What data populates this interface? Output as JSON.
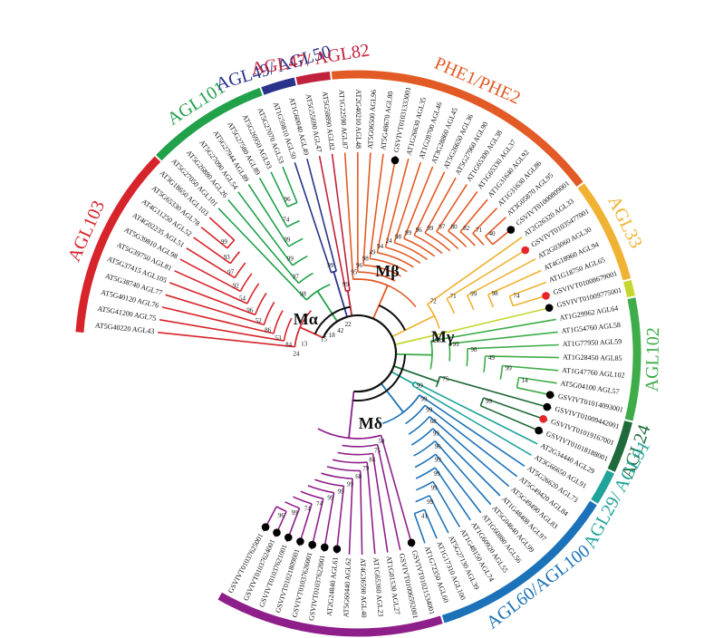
{
  "clades": [
    {
      "id": "AGL103",
      "label": "AGL103",
      "color": "#d7232a"
    },
    {
      "id": "AGL101",
      "label": "AGL101",
      "color": "#20a14a"
    },
    {
      "id": "AGL49",
      "label": "AGL49/ AGL50",
      "color": "#283389"
    },
    {
      "id": "AGL47",
      "label": "AGL47/ AGL82",
      "color": "#c0213b"
    },
    {
      "id": "PHE",
      "label": "PHE1/PHE2",
      "color": "#e25a25"
    },
    {
      "id": "AGL33",
      "label": "AGL33",
      "color": "#f0b232"
    },
    {
      "id": "Yel",
      "label": "",
      "color": "#c6d630"
    },
    {
      "id": "AGL102",
      "label": "AGL102",
      "color": "#3eac49"
    },
    {
      "id": "AGL24",
      "label": "AGL24",
      "color": "#1f6a3a"
    },
    {
      "id": "AGL29",
      "label": "AGL29/ AGL91",
      "color": "#1fa39b"
    },
    {
      "id": "AGL60",
      "label": "AGL60/AGL100",
      "color": "#1c72b8"
    },
    {
      "id": "AGL61",
      "label": "AGL61",
      "color": "#8e1f8a"
    }
  ],
  "subclades": [
    "Mα",
    "Mβ",
    "Mγ",
    "Mδ"
  ],
  "leaves": [
    {
      "name": "AT5G40220 AGL43",
      "clade": "AGL103",
      "marker": "",
      "boot": "84"
    },
    {
      "name": "AT5G41200 AGL75",
      "clade": "AGL103",
      "marker": "",
      "boot": "53"
    },
    {
      "name": "AT5G40120 AGL76",
      "clade": "AGL103",
      "marker": "",
      "boot": "86"
    },
    {
      "name": "AT5G38740 AGL77",
      "clade": "AGL103",
      "marker": "",
      "boot": "52"
    },
    {
      "name": "AT5G37415 AGL105",
      "clade": "AGL103",
      "marker": "",
      "boot": "96"
    },
    {
      "name": "AT5G39750 AGL81",
      "clade": "AGL103",
      "marker": "",
      "boot": "54"
    },
    {
      "name": "AT5G39810 AGL98",
      "clade": "AGL103",
      "marker": "",
      "boot": "92"
    },
    {
      "name": "AT4G02235 AGL51",
      "clade": "AGL103",
      "marker": "",
      "boot": "97"
    },
    {
      "name": "AT4G11250 AGL52",
      "clade": "AGL103",
      "marker": "",
      "boot": "93"
    },
    {
      "name": "AT5G65330 AGL78",
      "clade": "AGL103",
      "marker": "",
      "boot": "99"
    },
    {
      "name": "AT3G18650 AGL103",
      "clade": "AGL103",
      "marker": "",
      "boot": "98"
    },
    {
      "name": "AT5G27050 AGL101",
      "clade": "AGL101",
      "marker": "",
      "boot": "98"
    },
    {
      "name": "AT5G26880 AGL26",
      "clade": "AGL101",
      "marker": "",
      "boot": "97"
    },
    {
      "name": "AT5G27090 AGL54",
      "clade": "AGL101",
      "marker": "",
      "boot": "99"
    },
    {
      "name": "AT5G27944 AGL89",
      "clade": "AGL101",
      "marker": "",
      "boot": "99"
    },
    {
      "name": "AT5G27580 AGL89",
      "clade": "AGL101",
      "marker": "",
      "boot": "74"
    },
    {
      "name": "AT5G26950 AGL93",
      "clade": "AGL101",
      "marker": "",
      "boot": "96"
    },
    {
      "name": "AT5G27070 AGL53",
      "clade": "AGL101",
      "marker": "",
      "boot": "99"
    },
    {
      "name": "AT1G59810 AGL50",
      "clade": "AGL49",
      "marker": "",
      "boot": "99"
    },
    {
      "name": "AT1G60040 AGL49",
      "clade": "AGL49",
      "marker": "",
      "boot": "99"
    },
    {
      "name": "AT5G55690 AGL47",
      "clade": "AGL47",
      "marker": "",
      "boot": "99"
    },
    {
      "name": "AT5G58890 AGL82",
      "clade": "AGL47",
      "marker": "",
      "boot": "78"
    },
    {
      "name": "AT1G22590 AGL87",
      "clade": "PHE",
      "marker": "",
      "boot": "95"
    },
    {
      "name": "AT2G40210 AGL48",
      "clade": "PHE",
      "marker": "",
      "boot": "96"
    },
    {
      "name": "AT5G06500 AGL96",
      "clade": "PHE",
      "marker": "",
      "boot": "98"
    },
    {
      "name": "AT5G48670 AGL80",
      "clade": "PHE",
      "marker": "",
      "boot": "49"
    },
    {
      "name": "GSVIVT01031333001",
      "clade": "PHE",
      "marker": "black",
      "boot": "94"
    },
    {
      "name": "AT1G26630 AGL35",
      "clade": "PHE",
      "marker": "",
      "boot": "24"
    },
    {
      "name": "AT1G28700 AGL46",
      "clade": "PHE",
      "marker": "",
      "boot": "98"
    },
    {
      "name": "AT3G28860 AGL45",
      "clade": "PHE",
      "marker": "",
      "boot": "99"
    },
    {
      "name": "AT5G26650 AGL36",
      "clade": "PHE",
      "marker": "",
      "boot": "96"
    },
    {
      "name": "AT5G27960 AGL90",
      "clade": "PHE",
      "marker": "",
      "boot": "99"
    },
    {
      "name": "AT1G65300 AGL38",
      "clade": "PHE",
      "marker": "",
      "boot": "97"
    },
    {
      "name": "AT1G65330 AGL37",
      "clade": "PHE",
      "marker": "",
      "boot": "80"
    },
    {
      "name": "AT1G31640 AGL92",
      "clade": "PHE",
      "marker": "",
      "boot": "82"
    },
    {
      "name": "AT1G31630 AGL86",
      "clade": "PHE",
      "marker": "",
      "boot": "71"
    },
    {
      "name": "AT3G05870 AGL95",
      "clade": "PHE",
      "marker": "",
      "boot": "40"
    },
    {
      "name": "GSVIVT01000809001",
      "clade": "PHE",
      "marker": "black",
      "boot": ""
    },
    {
      "name": "AT2G26320 AGL33",
      "clade": "AGL33",
      "marker": "",
      "boot": "72"
    },
    {
      "name": "GSVIVT01035477001",
      "clade": "AGL33",
      "marker": "red",
      "boot": "71"
    },
    {
      "name": "AT2G03060 AGL30",
      "clade": "AGL33",
      "marker": "",
      "boot": "99"
    },
    {
      "name": "AT4G18960 AGL94",
      "clade": "AGL33",
      "marker": "",
      "boot": "98"
    },
    {
      "name": "AT1G18750 AGL65",
      "clade": "AGL33",
      "marker": "",
      "boot": "74"
    },
    {
      "name": "GSVIVT01008679001",
      "clade": "AGL33",
      "marker": "red",
      "boot": "66"
    },
    {
      "name": "GSVIVT01009775001",
      "clade": "Yel",
      "marker": "black",
      "boot": ""
    },
    {
      "name": "AT1G29962 AGL64",
      "clade": "AGL102",
      "marker": "",
      "boot": "86"
    },
    {
      "name": "AT1G54760 AGL58",
      "clade": "AGL102",
      "marker": "",
      "boot": "99"
    },
    {
      "name": "AT1G77950 AGL59",
      "clade": "AGL102",
      "marker": "",
      "boot": "98"
    },
    {
      "name": "AT1G28450 AGL85",
      "clade": "AGL102",
      "marker": "",
      "boot": "49"
    },
    {
      "name": "AT1G47760 AGL102",
      "clade": "AGL102",
      "marker": "",
      "boot": "99"
    },
    {
      "name": "AT5G04100 AGL57",
      "clade": "AGL102",
      "marker": "",
      "boot": "14"
    },
    {
      "name": "GSVIVT01014093001",
      "clade": "AGL102",
      "marker": "black",
      "boot": ""
    },
    {
      "name": "GSVIVT01009442001",
      "clade": "AGL24",
      "marker": "black",
      "boot": "75"
    },
    {
      "name": "GSVIVT01019167001",
      "clade": "AGL24",
      "marker": "red",
      "boot": "99"
    },
    {
      "name": "GSVIVT01018188001",
      "clade": "AGL24",
      "marker": "black",
      "boot": "99"
    },
    {
      "name": "AT2G34440 AGL29",
      "clade": "AGL29",
      "marker": "",
      "boot": "99"
    },
    {
      "name": "AT3G66650 AGL91",
      "clade": "AGL29",
      "marker": "",
      "boot": "99"
    },
    {
      "name": "AT5G26620 AGL73",
      "clade": "AGL60",
      "marker": "",
      "boot": "99"
    },
    {
      "name": "AT5G49420 AGL84",
      "clade": "AGL60",
      "marker": "",
      "boot": "99"
    },
    {
      "name": "AT5G49490 AGL83",
      "clade": "AGL60",
      "marker": "",
      "boot": "68"
    },
    {
      "name": "AT1G48408 AGL97",
      "clade": "AGL60",
      "marker": "",
      "boot": "99"
    },
    {
      "name": "AT5G04640 AGL99",
      "clade": "AGL60",
      "marker": "",
      "boot": "96"
    },
    {
      "name": "AT1G60880 AGL56",
      "clade": "AGL60",
      "marker": "",
      "boot": "99"
    },
    {
      "name": "AT1G60920 AGL55",
      "clade": "AGL60",
      "marker": "",
      "boot": "99"
    },
    {
      "name": "AT1G48150 AGL74",
      "clade": "AGL60",
      "marker": "",
      "boot": "99"
    },
    {
      "name": "AT5G27130 AGL39",
      "clade": "AGL60",
      "marker": "",
      "boot": "99"
    },
    {
      "name": "AT1G17310 AGL100",
      "clade": "AGL60",
      "marker": "",
      "boot": "41"
    },
    {
      "name": "AT1G72350 AGL60",
      "clade": "AGL60",
      "marker": "",
      "boot": "26"
    },
    {
      "name": "GSVIVT01021534001",
      "clade": "AGL61",
      "marker": "black",
      "boot": "50"
    },
    {
      "name": "GSVIVT01006592001",
      "clade": "AGL61",
      "marker": "",
      "boot": "75"
    },
    {
      "name": "AT1G01530 AGL27",
      "clade": "AGL61",
      "marker": "",
      "boot": "84"
    },
    {
      "name": "AT1G65360 AGL23",
      "clade": "AGL61",
      "marker": "",
      "boot": "79"
    },
    {
      "name": "AT4G36590 AGL40",
      "clade": "AGL61",
      "marker": "",
      "boot": "68"
    },
    {
      "name": "AT5G60440 AGL62",
      "clade": "AGL61",
      "marker": "",
      "boot": "99"
    },
    {
      "name": "AT2G24840 AGL61",
      "clade": "AGL61",
      "marker": "black",
      "boot": "99"
    },
    {
      "name": "GSVIVT01037622001",
      "clade": "AGL61",
      "marker": "black",
      "boot": "99"
    },
    {
      "name": "GSVIVT01037626001",
      "clade": "AGL61",
      "marker": "black",
      "boot": "74"
    },
    {
      "name": "GSVIVT01021809001",
      "clade": "AGL61",
      "marker": "black",
      "boot": "74"
    },
    {
      "name": "GSVIVT01037621001",
      "clade": "AGL61",
      "marker": "black",
      "boot": "99"
    },
    {
      "name": "GSVIVT01037624001",
      "clade": "AGL61",
      "marker": "black",
      "boot": "96"
    },
    {
      "name": "GSVIVT01037625001",
      "clade": "AGL61",
      "marker": "black",
      "boot": "96"
    }
  ],
  "deep_bootstraps": [
    "13",
    "15",
    "18",
    "42",
    "22",
    "24"
  ]
}
